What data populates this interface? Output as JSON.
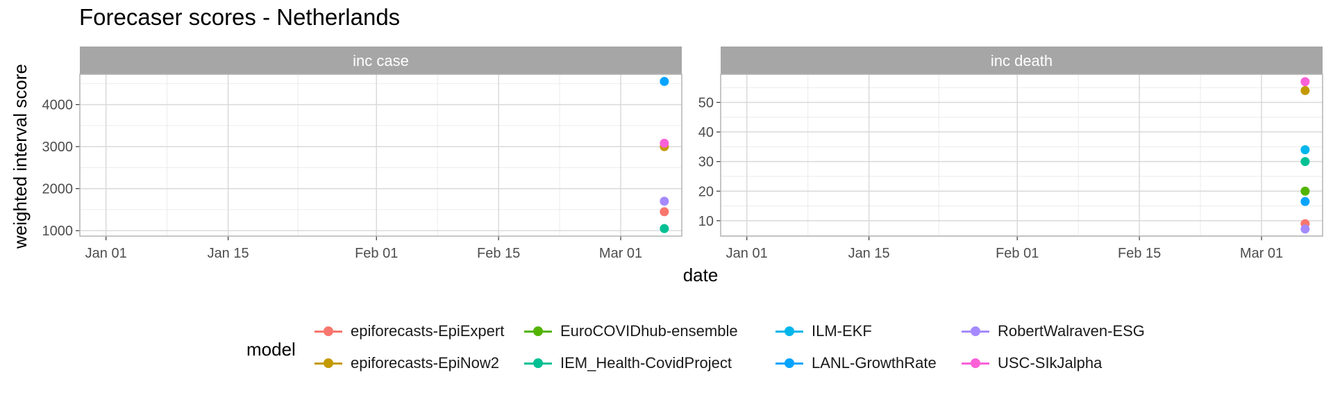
{
  "title": "Forecaser scores - Netherlands",
  "xlabel": "date",
  "ylabel": "weighted interval score",
  "legend": {
    "title": "model",
    "items": [
      {
        "label": "epiforecasts-EpiExpert",
        "color": "#F8766D"
      },
      {
        "label": "epiforecasts-EpiNow2",
        "color": "#C49A00"
      },
      {
        "label": "EuroCOVIDhub-ensemble",
        "color": "#53B400"
      },
      {
        "label": "IEM_Health-CovidProject",
        "color": "#00C094"
      },
      {
        "label": "ILM-EKF",
        "color": "#00B6EB"
      },
      {
        "label": "LANL-GrowthRate",
        "color": "#06A4FF"
      },
      {
        "label": "RobertWalraven-ESG",
        "color": "#A58AFF"
      },
      {
        "label": "USC-SIkJalpha",
        "color": "#FB61D7"
      }
    ]
  },
  "chart_data": [
    {
      "type": "scatter",
      "facet": "inc case",
      "x_ticks": [
        "Jan 01",
        "Jan 15",
        "Feb 01",
        "Feb 15",
        "Mar 01"
      ],
      "x_tick_dates": [
        "2021-01-01",
        "2021-01-15",
        "2021-02-01",
        "2021-02-15",
        "2021-03-01"
      ],
      "xlim": [
        "2020-12-29",
        "2021-03-08"
      ],
      "y_ticks": [
        1000,
        2000,
        3000,
        4000
      ],
      "ylim": [
        870,
        4720
      ],
      "grid": true,
      "series": [
        {
          "name": "epiforecasts-EpiExpert",
          "color": "#F8766D",
          "x": [
            "2021-03-06"
          ],
          "y": [
            1450
          ]
        },
        {
          "name": "epiforecasts-EpiNow2",
          "color": "#C49A00",
          "x": [
            "2021-03-06"
          ],
          "y": [
            3000
          ]
        },
        {
          "name": "IEM_Health-CovidProject",
          "color": "#00C094",
          "x": [
            "2021-03-06"
          ],
          "y": [
            1050
          ]
        },
        {
          "name": "LANL-GrowthRate",
          "color": "#06A4FF",
          "x": [
            "2021-03-06"
          ],
          "y": [
            4550
          ]
        },
        {
          "name": "RobertWalraven-ESG",
          "color": "#A58AFF",
          "x": [
            "2021-03-06"
          ],
          "y": [
            1700
          ]
        },
        {
          "name": "USC-SIkJalpha",
          "color": "#FB61D7",
          "x": [
            "2021-03-06"
          ],
          "y": [
            3080
          ]
        }
      ]
    },
    {
      "type": "scatter",
      "facet": "inc death",
      "x_ticks": [
        "Jan 01",
        "Jan 15",
        "Feb 01",
        "Feb 15",
        "Mar 01"
      ],
      "x_tick_dates": [
        "2021-01-01",
        "2021-01-15",
        "2021-02-01",
        "2021-02-15",
        "2021-03-01"
      ],
      "xlim": [
        "2020-12-29",
        "2021-03-08"
      ],
      "y_ticks": [
        10,
        20,
        30,
        40,
        50
      ],
      "ylim": [
        4.8,
        59.5
      ],
      "grid": true,
      "series": [
        {
          "name": "epiforecasts-EpiExpert",
          "color": "#F8766D",
          "x": [
            "2021-03-06"
          ],
          "y": [
            9
          ]
        },
        {
          "name": "epiforecasts-EpiNow2",
          "color": "#C49A00",
          "x": [
            "2021-03-06"
          ],
          "y": [
            54
          ]
        },
        {
          "name": "EuroCOVIDhub-ensemble",
          "color": "#53B400",
          "x": [
            "2021-03-06"
          ],
          "y": [
            20
          ]
        },
        {
          "name": "IEM_Health-CovidProject",
          "color": "#00C094",
          "x": [
            "2021-03-06"
          ],
          "y": [
            30
          ]
        },
        {
          "name": "ILM-EKF",
          "color": "#00B6EB",
          "x": [
            "2021-03-06"
          ],
          "y": [
            34
          ]
        },
        {
          "name": "LANL-GrowthRate",
          "color": "#06A4FF",
          "x": [
            "2021-03-06"
          ],
          "y": [
            16.5
          ]
        },
        {
          "name": "RobertWalraven-ESG",
          "color": "#A58AFF",
          "x": [
            "2021-03-06"
          ],
          "y": [
            7.2
          ]
        },
        {
          "name": "USC-SIkJalpha",
          "color": "#FB61D7",
          "x": [
            "2021-03-06"
          ],
          "y": [
            57
          ]
        }
      ]
    }
  ]
}
